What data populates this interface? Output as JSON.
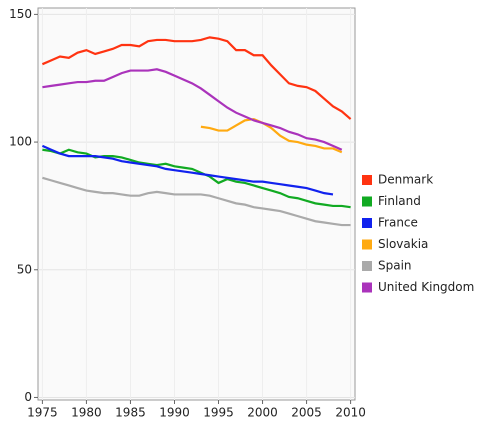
{
  "chart_data": {
    "type": "line",
    "x": [
      1975,
      1976,
      1977,
      1978,
      1979,
      1980,
      1981,
      1982,
      1983,
      1984,
      1985,
      1986,
      1987,
      1988,
      1989,
      1990,
      1991,
      1992,
      1993,
      1994,
      1995,
      1996,
      1997,
      1998,
      1999,
      2000,
      2001,
      2002,
      2003,
      2004,
      2005,
      2006,
      2007,
      2008,
      2009,
      2010
    ],
    "series": [
      {
        "name": "Denmark",
        "color": "#ff3311",
        "values": [
          130.5,
          132,
          133.5,
          133,
          135,
          136,
          134.5,
          135.5,
          136.5,
          138,
          138,
          137.5,
          139.5,
          140,
          140,
          139.5,
          139.5,
          139.5,
          140,
          141,
          140.5,
          139.5,
          136,
          136,
          134,
          134,
          130,
          126.5,
          123,
          122,
          121.5,
          120,
          117,
          114,
          112,
          109
        ]
      },
      {
        "name": "Finland",
        "color": "#11aa22",
        "values": [
          97,
          96.5,
          95.5,
          97,
          96,
          95.5,
          94,
          94.5,
          94.5,
          94,
          93,
          92,
          91.5,
          91,
          91.5,
          90.5,
          90,
          89.5,
          88,
          86.5,
          84,
          85.5,
          84.5,
          84,
          83,
          82,
          81,
          80,
          78.5,
          78,
          77,
          76,
          75.5,
          75,
          75,
          74.5
        ]
      },
      {
        "name": "France",
        "color": "#1122ee",
        "values": [
          98.5,
          97,
          95.5,
          94.5,
          94.5,
          94.5,
          94.5,
          94,
          93.5,
          92.5,
          92,
          91.5,
          91,
          90.5,
          89.5,
          89,
          88.5,
          88,
          87.5,
          87,
          86.5,
          86,
          85.5,
          85,
          84.5,
          84.5,
          84,
          83.5,
          83,
          82.5,
          82,
          81,
          80,
          79.5,
          null,
          null
        ]
      },
      {
        "name": "Slovakia",
        "color": "#ffaa11",
        "values": [
          null,
          null,
          null,
          null,
          null,
          null,
          null,
          null,
          null,
          null,
          null,
          null,
          null,
          null,
          null,
          null,
          null,
          null,
          106,
          105.5,
          104.5,
          104.5,
          106.5,
          108.5,
          109,
          107.5,
          105.5,
          102.5,
          100.5,
          100,
          99,
          98.5,
          97.5,
          97.5,
          96,
          null
        ]
      },
      {
        "name": "Spain",
        "color": "#aaaaaa",
        "values": [
          86,
          85,
          84,
          83,
          82,
          81,
          80.5,
          80,
          80,
          79.5,
          79,
          79,
          80,
          80.5,
          80,
          79.5,
          79.5,
          79.5,
          79.5,
          79,
          78,
          77,
          76,
          75.5,
          74.5,
          74,
          73.5,
          73,
          72,
          71,
          70,
          69,
          68.5,
          68,
          67.5,
          67.5
        ]
      },
      {
        "name": "United Kingdom",
        "color": "#aa33bb",
        "values": [
          121.5,
          122,
          122.5,
          123,
          123.5,
          123.5,
          124,
          124,
          125.5,
          127,
          128,
          128,
          128,
          128.5,
          127.5,
          126,
          124.5,
          123,
          121,
          118.5,
          116,
          113.5,
          111.5,
          110,
          108.5,
          107.5,
          106.5,
          105.5,
          104,
          103,
          101.5,
          101,
          100,
          98.5,
          97,
          null
        ]
      }
    ],
    "xlim": [
      1974.5,
      2010.5
    ],
    "xticks": [
      1975,
      1980,
      1985,
      1990,
      1995,
      2000,
      2005,
      2010
    ],
    "ylim": [
      -1,
      152.5
    ],
    "yticks": [
      0,
      50,
      100,
      150
    ],
    "grid": true,
    "legend": "right"
  }
}
